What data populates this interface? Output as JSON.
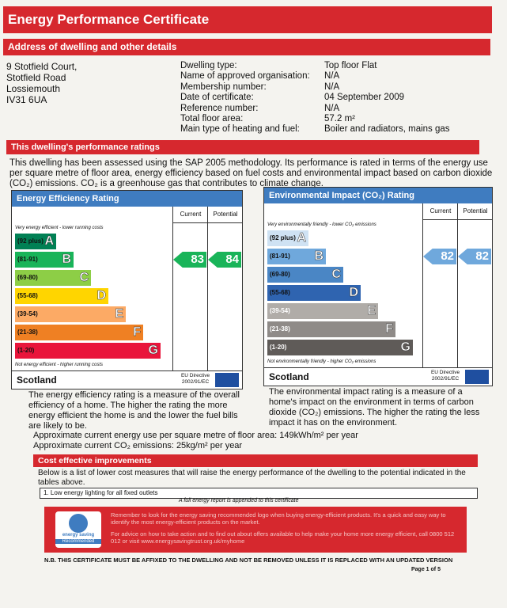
{
  "header": {
    "title": "Energy Performance Certificate"
  },
  "address": {
    "heading": "Address of dwelling and other details",
    "lines": [
      "9 Stotfield Court,",
      "Stotfield Road",
      "Lossiemouth",
      "IV31 6UA"
    ]
  },
  "details": [
    {
      "label": "Dwelling type:",
      "value": "Top floor Flat"
    },
    {
      "label": "Name of approved organisation:",
      "value": "N/A"
    },
    {
      "label": "Membership number:",
      "value": "N/A"
    },
    {
      "label": "Date of certificate:",
      "value": "04 September 2009"
    },
    {
      "label": "Reference number:",
      "value": "N/A"
    },
    {
      "label": "Total floor area:",
      "value": "57.2 m²"
    },
    {
      "label": "Main type of heating and fuel:",
      "value": "Boiler and radiators, mains gas"
    }
  ],
  "ratings": {
    "heading": "This dwelling's performance ratings",
    "text": "This dwelling has been assessed using the SAP 2005 methodology. Its performance is rated in terms of the energy use per square metre of floor area, energy efficiency based on fuel costs and environmental impact based on carbon dioxide (CO₂) emissions. CO₂ is a greenhouse gas that contributes to climate change."
  },
  "efficiency": {
    "title": "Energy Efficiency Rating",
    "col_current": "Current",
    "col_potential": "Potential",
    "top_note": "Very energy efficient - lower running costs",
    "bands": [
      {
        "range": "(92 plus)",
        "letter": "A"
      },
      {
        "range": "(81-91)",
        "letter": "B"
      },
      {
        "range": "(69-80)",
        "letter": "C"
      },
      {
        "range": "(55-68)",
        "letter": "D"
      },
      {
        "range": "(39-54)",
        "letter": "E"
      },
      {
        "range": "(21-38)",
        "letter": "F"
      },
      {
        "range": "(1-20)",
        "letter": "G"
      }
    ],
    "bottom_note": "Not energy efficient - higher running costs",
    "country": "Scotland",
    "directive": "EU Directive 2002/91/EC",
    "current": "83",
    "potential": "84",
    "description": "The energy efficiency rating is a measure of the overall efficiency of a home. The higher the rating the more energy efficient the home is and the lower the fuel bills are likely to be."
  },
  "environmental": {
    "title": "Environmental Impact (CO₂) Rating",
    "col_current": "Current",
    "col_potential": "Potential",
    "top_note": "Very environmentally friendly - lower CO₂ emissions",
    "bands": [
      {
        "range": "(92 plus)",
        "letter": "A"
      },
      {
        "range": "(81-91)",
        "letter": "B"
      },
      {
        "range": "(69-80)",
        "letter": "C"
      },
      {
        "range": "(55-68)",
        "letter": "D"
      },
      {
        "range": "(39-54)",
        "letter": "E"
      },
      {
        "range": "(21-38)",
        "letter": "F"
      },
      {
        "range": "(1-20)",
        "letter": "G"
      }
    ],
    "bottom_note": "Not environmentally friendly - higher CO₂ emissions",
    "country": "Scotland",
    "directive": "EU Directive 2002/91/EC",
    "current": "82",
    "potential": "82",
    "description": "The environmental impact rating is a measure of a home's impact on the environment in terms of carbon dioxide (CO₂) emissions. The higher the rating the less impact it has on the environment."
  },
  "usage": [
    "Approximate current energy use per square metre of floor area: 149kWh/m² per year",
    "Approximate current CO₂ emissions: 25kg/m² per year"
  ],
  "improvements": {
    "heading": "Cost effective improvements",
    "text": "Below is a list of lower cost measures that will raise the energy performance of the dwelling to the potential indicated in the tables above.",
    "items": [
      "1. Low energy lighting for all fixed outlets"
    ],
    "note": "A full energy report is appended to this certificate"
  },
  "banner": {
    "logo_top": "energy saving",
    "logo_bottom": "Recommended",
    "text1": "Remember to look for the energy saving recommended logo when buying energy-efficient products. It's a quick and easy way to identify the most energy-efficient products on the market.",
    "text2": "For advice on how to take action and to find out about offers available to help make your home more energy efficient, call 0800 512 012 or visit www.energysavingtrust.org.uk/myhome"
  },
  "footer": {
    "notice": "N.B. THIS CERTIFICATE MUST BE AFFIXED TO THE DWELLING AND NOT BE REMOVED UNLESS IT IS REPLACED WITH AN UPDATED VERSION",
    "page": "Page 1 of 5"
  }
}
